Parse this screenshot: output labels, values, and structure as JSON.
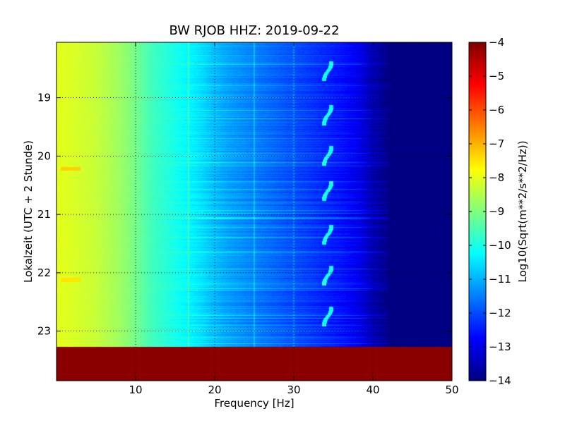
{
  "chart_data": {
    "type": "heatmap",
    "title": "BW RJOB HHZ: 2019-09-22",
    "xlabel": "Frequency [Hz]",
    "ylabel": "Lokalzeit (UTC + 2 Stunde)",
    "xlim": [
      0,
      50
    ],
    "ylim": [
      18.05,
      23.85
    ],
    "y_inverted": true,
    "x_ticks": [
      10,
      20,
      30,
      40,
      50
    ],
    "y_ticks": [
      19,
      20,
      21,
      22,
      23
    ],
    "grid": true,
    "grid_x": [
      10,
      20,
      30,
      40
    ],
    "grid_y": [
      19,
      20,
      21,
      22,
      23
    ],
    "colormap": "jet",
    "colorbar": {
      "label": "Log10(Sqrt(m**2/s**2/Hz))",
      "range": [
        -14,
        -4
      ],
      "ticks": [
        -4,
        -5,
        -6,
        -7,
        -8,
        -9,
        -10,
        -11,
        -12,
        -13,
        -14
      ]
    },
    "amplitude_profile": {
      "frequency_hz": [
        0,
        2,
        5,
        8,
        10,
        12,
        14,
        16,
        18,
        20,
        22,
        25,
        28,
        30,
        33,
        36,
        38,
        40,
        42,
        50
      ],
      "log10_amplitude": [
        -8.0,
        -8.1,
        -8.3,
        -8.7,
        -9.1,
        -9.6,
        -9.9,
        -10.2,
        -10.5,
        -10.9,
        -11.2,
        -11.5,
        -11.8,
        -12.0,
        -12.3,
        -12.6,
        -12.9,
        -13.5,
        -14.0,
        -14.0
      ]
    },
    "no_data_band": {
      "from_hour": 23.27,
      "to_hour": 23.85,
      "value": -4
    },
    "features": {
      "vertical_lines_hz": [
        16.7,
        25,
        30
      ],
      "arc_tones": {
        "frequency_hz": 34.6,
        "hours": [
          18.55,
          19.3,
          20.0,
          20.6,
          21.35,
          22.05,
          22.75
        ]
      },
      "strong_low_freq_events": [
        {
          "hour": 20.22,
          "frequency_range_hz": [
            0.5,
            3
          ],
          "log10_amplitude": -7.3
        },
        {
          "hour": 22.12,
          "frequency_range_hz": [
            0.5,
            3
          ],
          "log10_amplitude": -7.5
        }
      ]
    }
  }
}
